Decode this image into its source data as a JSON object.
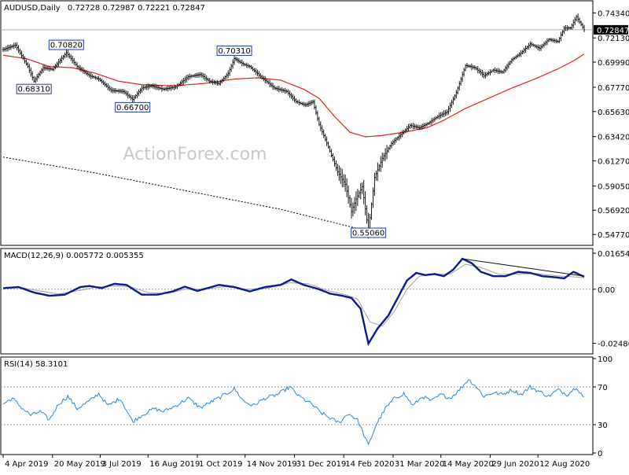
{
  "chart_data": [
    {
      "type": "candlestick",
      "title": "AUDUSD,Daily",
      "ohlc_label": "0.72728 0.72987 0.72221 0.72847",
      "watermark": "ActionForex.com",
      "ylim": [
        0.5395,
        0.752
      ],
      "y_ticks": [
        "0.74340",
        "0.72130",
        "0.69990",
        "0.67770",
        "0.65630",
        "0.63420",
        "0.61270",
        "0.59050",
        "0.56920",
        "0.54770"
      ],
      "y_tick_values": [
        0.7434,
        0.7213,
        0.6999,
        0.6777,
        0.6563,
        0.6342,
        0.6127,
        0.5905,
        0.5692,
        0.5477
      ],
      "last_price": "0.72847",
      "last_price_value": 0.72847,
      "annotations": [
        {
          "label": "0.70820",
          "date_index": 41,
          "price": 0.7082
        },
        {
          "label": "0.68310",
          "date_index": 20,
          "price": 0.6831
        },
        {
          "label": "0.66700",
          "date_index": 84,
          "price": 0.667
        },
        {
          "label": "0.70310",
          "date_index": 150,
          "price": 0.7031
        },
        {
          "label": "0.55060",
          "date_index": 237,
          "price": 0.5506
        }
      ],
      "price_anchors": [
        [
          0,
          0.711
        ],
        [
          8,
          0.715
        ],
        [
          16,
          0.696
        ],
        [
          20,
          0.6831
        ],
        [
          26,
          0.695
        ],
        [
          32,
          0.6935
        ],
        [
          41,
          0.7082
        ],
        [
          48,
          0.696
        ],
        [
          56,
          0.688
        ],
        [
          62,
          0.685
        ],
        [
          70,
          0.675
        ],
        [
          78,
          0.674
        ],
        [
          84,
          0.667
        ],
        [
          90,
          0.677
        ],
        [
          96,
          0.679
        ],
        [
          104,
          0.676
        ],
        [
          112,
          0.678
        ],
        [
          120,
          0.687
        ],
        [
          128,
          0.689
        ],
        [
          134,
          0.683
        ],
        [
          140,
          0.681
        ],
        [
          146,
          0.69
        ],
        [
          150,
          0.7031
        ],
        [
          156,
          0.698
        ],
        [
          160,
          0.696
        ],
        [
          168,
          0.686
        ],
        [
          176,
          0.677
        ],
        [
          184,
          0.674
        ],
        [
          190,
          0.665
        ],
        [
          196,
          0.662
        ],
        [
          201,
          0.665
        ],
        [
          205,
          0.645
        ],
        [
          211,
          0.625
        ],
        [
          217,
          0.603
        ],
        [
          222,
          0.592
        ],
        [
          226,
          0.568
        ],
        [
          229,
          0.579
        ],
        [
          233,
          0.59
        ],
        [
          237,
          0.5506
        ],
        [
          241,
          0.598
        ],
        [
          246,
          0.615
        ],
        [
          252,
          0.628
        ],
        [
          258,
          0.636
        ],
        [
          264,
          0.644
        ],
        [
          270,
          0.642
        ],
        [
          276,
          0.646
        ],
        [
          282,
          0.652
        ],
        [
          288,
          0.656
        ],
        [
          294,
          0.673
        ],
        [
          300,
          0.697
        ],
        [
          306,
          0.695
        ],
        [
          312,
          0.688
        ],
        [
          318,
          0.693
        ],
        [
          324,
          0.691
        ],
        [
          330,
          0.702
        ],
        [
          336,
          0.708
        ],
        [
          342,
          0.716
        ],
        [
          348,
          0.712
        ],
        [
          354,
          0.72
        ],
        [
          360,
          0.718
        ],
        [
          364,
          0.73
        ],
        [
          368,
          0.73
        ],
        [
          372,
          0.74
        ],
        [
          375,
          0.733
        ],
        [
          377,
          0.72847
        ]
      ],
      "ma_fast_label": "",
      "ma_fast_anchors": [
        [
          0,
          0.706
        ],
        [
          15,
          0.703
        ],
        [
          30,
          0.696
        ],
        [
          45,
          0.695
        ],
        [
          60,
          0.69
        ],
        [
          75,
          0.683
        ],
        [
          90,
          0.68
        ],
        [
          110,
          0.679
        ],
        [
          130,
          0.681
        ],
        [
          150,
          0.685
        ],
        [
          165,
          0.686
        ],
        [
          180,
          0.684
        ],
        [
          195,
          0.676
        ],
        [
          205,
          0.668
        ],
        [
          215,
          0.652
        ],
        [
          225,
          0.638
        ],
        [
          235,
          0.634
        ],
        [
          245,
          0.635
        ],
        [
          260,
          0.638
        ],
        [
          275,
          0.642
        ],
        [
          285,
          0.648
        ],
        [
          300,
          0.659
        ],
        [
          315,
          0.668
        ],
        [
          330,
          0.677
        ],
        [
          345,
          0.685
        ],
        [
          360,
          0.694
        ],
        [
          370,
          0.701
        ],
        [
          377,
          0.707
        ]
      ],
      "ma_slow_anchors": [
        [
          0,
          0.616
        ],
        [
          60,
          0.602
        ],
        [
          120,
          0.586
        ],
        [
          180,
          0.57
        ],
        [
          230,
          0.553
        ],
        [
          240,
          0.5506
        ]
      ],
      "x_ticks": [
        "4 Apr 2019",
        "20 May 2019",
        "3 Jul 2019",
        "16 Aug 2019",
        "1 Oct 2019",
        "14 Nov 2019",
        "31 Dec 2019",
        "14 Feb 2020",
        "31 Mar 2020",
        "14 May 2020",
        "29 Jun 2020",
        "12 Aug 2020"
      ],
      "x_tick_index": [
        0,
        32,
        63,
        94,
        126,
        157,
        189,
        221,
        253,
        284,
        316,
        347
      ]
    },
    {
      "type": "line",
      "title": "MACD(12,26,9) 0.005772 0.005355",
      "ylim": [
        -0.029,
        0.018
      ],
      "y_ticks": [
        "0.01654",
        "0.00",
        "-0.02486"
      ],
      "y_tick_values": [
        0.01654,
        0.0,
        -0.02486
      ],
      "macd_anchors": [
        [
          0,
          0.0005
        ],
        [
          10,
          0.001
        ],
        [
          20,
          -0.0015
        ],
        [
          30,
          -0.003
        ],
        [
          40,
          -0.0025
        ],
        [
          50,
          0.001
        ],
        [
          56,
          0.0015
        ],
        [
          64,
          0.0005
        ],
        [
          72,
          0.0025
        ],
        [
          80,
          0.002
        ],
        [
          90,
          -0.0025
        ],
        [
          100,
          -0.0025
        ],
        [
          110,
          -0.001
        ],
        [
          118,
          0.0012
        ],
        [
          126,
          -0.0008
        ],
        [
          140,
          0.002
        ],
        [
          150,
          0.001
        ],
        [
          160,
          -0.001
        ],
        [
          170,
          0.001
        ],
        [
          180,
          0.002
        ],
        [
          187,
          0.0045
        ],
        [
          195,
          0.002
        ],
        [
          205,
          0.0
        ],
        [
          212,
          -0.002
        ],
        [
          220,
          -0.003
        ],
        [
          226,
          -0.004
        ],
        [
          232,
          -0.009
        ],
        [
          237,
          -0.025
        ],
        [
          243,
          -0.018
        ],
        [
          250,
          -0.012
        ],
        [
          256,
          -0.004
        ],
        [
          262,
          0.004
        ],
        [
          268,
          0.0075
        ],
        [
          274,
          0.0065
        ],
        [
          280,
          0.007
        ],
        [
          286,
          0.006
        ],
        [
          292,
          0.009
        ],
        [
          298,
          0.014
        ],
        [
          304,
          0.012
        ],
        [
          310,
          0.008
        ],
        [
          318,
          0.006
        ],
        [
          326,
          0.006
        ],
        [
          334,
          0.008
        ],
        [
          342,
          0.0075
        ],
        [
          350,
          0.006
        ],
        [
          358,
          0.0055
        ],
        [
          364,
          0.005
        ],
        [
          370,
          0.008
        ],
        [
          377,
          0.005772
        ]
      ],
      "signal_anchors": [
        [
          0,
          0.0005
        ],
        [
          12,
          0.0007
        ],
        [
          24,
          -0.0008
        ],
        [
          36,
          -0.0022
        ],
        [
          50,
          -0.0005
        ],
        [
          60,
          0.001
        ],
        [
          72,
          0.0015
        ],
        [
          82,
          0.0012
        ],
        [
          94,
          -0.0015
        ],
        [
          106,
          -0.002
        ],
        [
          118,
          0.0
        ],
        [
          130,
          0.0
        ],
        [
          144,
          0.0012
        ],
        [
          158,
          0.0
        ],
        [
          172,
          0.0005
        ],
        [
          186,
          0.003
        ],
        [
          198,
          0.0025
        ],
        [
          210,
          -0.0005
        ],
        [
          222,
          -0.0025
        ],
        [
          230,
          -0.0045
        ],
        [
          238,
          -0.015
        ],
        [
          246,
          -0.017
        ],
        [
          254,
          -0.01
        ],
        [
          262,
          0.0
        ],
        [
          270,
          0.006
        ],
        [
          280,
          0.0068
        ],
        [
          290,
          0.007
        ],
        [
          300,
          0.0115
        ],
        [
          310,
          0.01
        ],
        [
          322,
          0.0068
        ],
        [
          334,
          0.007
        ],
        [
          346,
          0.0072
        ],
        [
          358,
          0.0062
        ],
        [
          368,
          0.0058
        ],
        [
          377,
          0.005355
        ]
      ],
      "trendline": [
        [
          298,
          0.014
        ],
        [
          377,
          0.006
        ]
      ]
    },
    {
      "type": "line",
      "title": "RSI(14) 58.3101",
      "ylim": [
        0,
        100
      ],
      "y_ticks": [
        "100",
        "70",
        "30",
        "0"
      ],
      "y_tick_values": [
        100,
        70,
        30,
        0
      ],
      "rsi_anchors": [
        [
          0,
          52
        ],
        [
          6,
          58
        ],
        [
          12,
          48
        ],
        [
          18,
          40
        ],
        [
          24,
          44
        ],
        [
          30,
          35
        ],
        [
          36,
          52
        ],
        [
          42,
          60
        ],
        [
          48,
          47
        ],
        [
          56,
          55
        ],
        [
          62,
          63
        ],
        [
          68,
          50
        ],
        [
          76,
          58
        ],
        [
          84,
          33
        ],
        [
          90,
          40
        ],
        [
          98,
          47
        ],
        [
          104,
          44
        ],
        [
          112,
          50
        ],
        [
          120,
          58
        ],
        [
          128,
          48
        ],
        [
          136,
          55
        ],
        [
          142,
          60
        ],
        [
          150,
          68
        ],
        [
          156,
          55
        ],
        [
          162,
          50
        ],
        [
          170,
          58
        ],
        [
          178,
          62
        ],
        [
          186,
          70
        ],
        [
          192,
          60
        ],
        [
          200,
          52
        ],
        [
          206,
          43
        ],
        [
          212,
          37
        ],
        [
          218,
          32
        ],
        [
          224,
          42
        ],
        [
          230,
          35
        ],
        [
          237,
          8
        ],
        [
          242,
          30
        ],
        [
          248,
          47
        ],
        [
          254,
          58
        ],
        [
          260,
          63
        ],
        [
          266,
          50
        ],
        [
          272,
          60
        ],
        [
          278,
          55
        ],
        [
          284,
          62
        ],
        [
          290,
          58
        ],
        [
          296,
          67
        ],
        [
          302,
          78
        ],
        [
          306,
          72
        ],
        [
          312,
          60
        ],
        [
          318,
          64
        ],
        [
          324,
          62
        ],
        [
          330,
          67
        ],
        [
          336,
          62
        ],
        [
          342,
          70
        ],
        [
          348,
          65
        ],
        [
          354,
          60
        ],
        [
          360,
          67
        ],
        [
          366,
          62
        ],
        [
          372,
          70
        ],
        [
          377,
          58.3101
        ]
      ]
    }
  ]
}
